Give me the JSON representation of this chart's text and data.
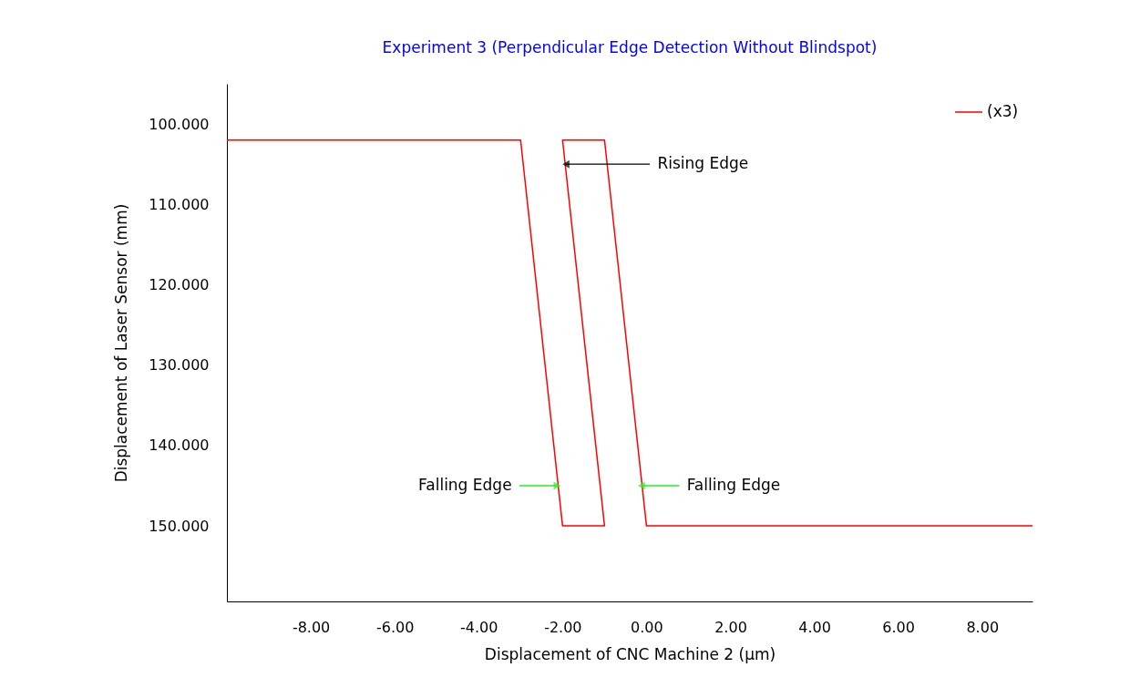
{
  "chart_data": {
    "type": "line",
    "title": "Experiment 3 (Perpendicular Edge Detection Without Blindspot)",
    "xlabel": "Displacement of CNC Machine 2 (µm)",
    "ylabel": "Displacement of Laser Sensor (mm)",
    "series": [
      {
        "name": "(x3)",
        "color": "#ff0000",
        "x": [
          -10,
          -3.0,
          -2.0,
          -1.0,
          -2.0,
          -1.0,
          0.0,
          9.2
        ],
        "values": [
          102,
          102,
          150,
          150,
          102,
          102,
          150,
          150
        ]
      }
    ],
    "xlim": [
      -10,
      9.2
    ],
    "ylim": [
      159.4,
      95
    ],
    "xticks": [
      {
        "value": -8,
        "label": "-8.00"
      },
      {
        "value": -6,
        "label": "-6.00"
      },
      {
        "value": -4,
        "label": "-4.00"
      },
      {
        "value": -2,
        "label": "-2.00"
      },
      {
        "value": 0,
        "label": "0.00"
      },
      {
        "value": 2,
        "label": "2.00"
      },
      {
        "value": 4,
        "label": "4.00"
      },
      {
        "value": 6,
        "label": "6.00"
      },
      {
        "value": 8,
        "label": "8.00"
      }
    ],
    "yticks": [
      {
        "value": 100,
        "label": "100.000"
      },
      {
        "value": 110,
        "label": "110.000"
      },
      {
        "value": 120,
        "label": "120.000"
      },
      {
        "value": 130,
        "label": "130.000"
      },
      {
        "value": 140,
        "label": "140.000"
      },
      {
        "value": 150,
        "label": "150.000"
      }
    ],
    "annotations": [
      {
        "text": "Rising Edge",
        "x": -1.92,
        "y": 105
      },
      {
        "text": "Falling Edge",
        "x": -2.13,
        "y": 145
      },
      {
        "text": "Falling Edge",
        "x": -0.12,
        "y": 145
      }
    ],
    "legend": "top right",
    "grid": false,
    "marker": "none",
    "line_style": "solid"
  }
}
